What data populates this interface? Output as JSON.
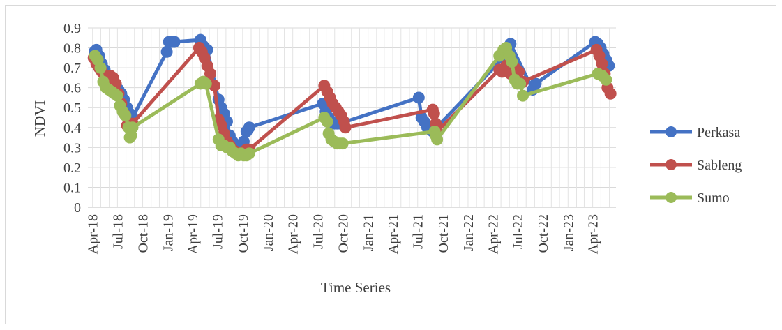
{
  "chart_data": {
    "type": "line",
    "title": "",
    "xlabel": "Time Series",
    "ylabel": "NDVI",
    "ylim": [
      0,
      0.9
    ],
    "y_ticks": [
      "0",
      "0.1",
      "0.2",
      "0.3",
      "0.4",
      "0.5",
      "0.6",
      "0.7",
      "0.8",
      "0.9"
    ],
    "x_ticks": [
      "Apr-18",
      "Jul-18",
      "Oct-18",
      "Jan-19",
      "Apr-19",
      "Jul-19",
      "Oct-19",
      "Jan-20",
      "Apr-20",
      "Jul-20",
      "Oct-20",
      "Jan-21",
      "Apr-21",
      "Jul-21",
      "Oct-21",
      "Jan-22",
      "Apr-22",
      "Jul-22",
      "Oct-22",
      "Jan-23",
      "Apr-23"
    ],
    "grid": true,
    "legend_position": "right",
    "series": [
      {
        "name": "Perkasa",
        "color": "#4472C4",
        "points": [
          [
            "2018-04-08",
            0.78
          ],
          [
            "2018-04-15",
            0.79
          ],
          [
            "2018-04-25",
            0.76
          ],
          [
            "2018-05-05",
            0.72
          ],
          [
            "2018-05-15",
            0.69
          ],
          [
            "2018-05-25",
            0.66
          ],
          [
            "2018-06-05",
            0.64
          ],
          [
            "2018-06-15",
            0.62
          ],
          [
            "2018-06-25",
            0.6
          ],
          [
            "2018-07-05",
            0.59
          ],
          [
            "2018-07-15",
            0.57
          ],
          [
            "2018-07-25",
            0.54
          ],
          [
            "2018-08-05",
            0.5
          ],
          [
            "2018-08-15",
            0.47
          ],
          [
            "2018-08-25",
            0.45
          ],
          [
            "2018-12-28",
            0.78
          ],
          [
            "2019-01-05",
            0.83
          ],
          [
            "2019-01-15",
            0.83
          ],
          [
            "2019-01-25",
            0.83
          ],
          [
            "2019-04-30",
            0.84
          ],
          [
            "2019-05-10",
            0.81
          ],
          [
            "2019-05-25",
            0.79
          ],
          [
            "2019-07-05",
            0.54
          ],
          [
            "2019-07-15",
            0.5
          ],
          [
            "2019-07-25",
            0.47
          ],
          [
            "2019-08-05",
            0.43
          ],
          [
            "2019-08-15",
            0.36
          ],
          [
            "2019-08-25",
            0.33
          ],
          [
            "2019-09-05",
            0.31
          ],
          [
            "2019-09-15",
            0.3
          ],
          [
            "2019-09-25",
            0.3
          ],
          [
            "2019-10-05",
            0.33
          ],
          [
            "2019-10-15",
            0.38
          ],
          [
            "2019-10-25",
            0.4
          ],
          [
            "2020-07-20",
            0.52
          ],
          [
            "2020-07-30",
            0.48
          ],
          [
            "2020-08-10",
            0.45
          ],
          [
            "2020-08-20",
            0.43
          ],
          [
            "2020-08-30",
            0.42
          ],
          [
            "2020-09-10",
            0.42
          ],
          [
            "2020-09-20",
            0.42
          ],
          [
            "2021-07-05",
            0.55
          ],
          [
            "2021-07-15",
            0.45
          ],
          [
            "2021-07-25",
            0.43
          ],
          [
            "2021-08-05",
            0.4
          ],
          [
            "2021-08-15",
            0.39
          ],
          [
            "2021-08-25",
            0.38
          ],
          [
            "2022-05-10",
            0.75
          ],
          [
            "2022-05-25",
            0.79
          ],
          [
            "2022-06-05",
            0.82
          ],
          [
            "2022-08-25",
            0.59
          ],
          [
            "2022-09-05",
            0.62
          ],
          [
            "2023-04-10",
            0.83
          ],
          [
            "2023-04-20",
            0.82
          ],
          [
            "2023-04-30",
            0.8
          ],
          [
            "2023-05-10",
            0.77
          ],
          [
            "2023-05-20",
            0.74
          ],
          [
            "2023-05-30",
            0.71
          ]
        ]
      },
      {
        "name": "Sableng",
        "color": "#C0504D",
        "points": [
          [
            "2018-04-05",
            0.75
          ],
          [
            "2018-04-15",
            0.72
          ],
          [
            "2018-04-25",
            0.7
          ],
          [
            "2018-05-05",
            0.68
          ],
          [
            "2018-05-15",
            0.66
          ],
          [
            "2018-05-25",
            0.63
          ],
          [
            "2018-06-05",
            0.66
          ],
          [
            "2018-06-15",
            0.65
          ],
          [
            "2018-06-25",
            0.62
          ],
          [
            "2018-07-05",
            0.57
          ],
          [
            "2018-07-15",
            0.52
          ],
          [
            "2018-07-25",
            0.47
          ],
          [
            "2018-08-05",
            0.41
          ],
          [
            "2018-08-15",
            0.42
          ],
          [
            "2018-08-25",
            0.42
          ],
          [
            "2019-04-25",
            0.8
          ],
          [
            "2019-05-05",
            0.78
          ],
          [
            "2019-05-15",
            0.75
          ],
          [
            "2019-05-25",
            0.71
          ],
          [
            "2019-06-05",
            0.67
          ],
          [
            "2019-06-20",
            0.61
          ],
          [
            "2019-07-05",
            0.44
          ],
          [
            "2019-07-15",
            0.41
          ],
          [
            "2019-07-25",
            0.37
          ],
          [
            "2019-08-05",
            0.33
          ],
          [
            "2019-08-15",
            0.31
          ],
          [
            "2019-08-25",
            0.29
          ],
          [
            "2019-09-05",
            0.28
          ],
          [
            "2019-09-15",
            0.27
          ],
          [
            "2019-09-25",
            0.27
          ],
          [
            "2019-10-05",
            0.28
          ],
          [
            "2019-10-15",
            0.29
          ],
          [
            "2019-10-25",
            0.29
          ],
          [
            "2020-07-25",
            0.61
          ],
          [
            "2020-08-05",
            0.58
          ],
          [
            "2020-08-15",
            0.55
          ],
          [
            "2020-08-25",
            0.52
          ],
          [
            "2020-09-05",
            0.5
          ],
          [
            "2020-09-15",
            0.48
          ],
          [
            "2020-09-25",
            0.46
          ],
          [
            "2020-10-05",
            0.43
          ],
          [
            "2020-10-10",
            0.4
          ],
          [
            "2021-08-25",
            0.49
          ],
          [
            "2021-08-30",
            0.47
          ],
          [
            "2021-09-05",
            0.42
          ],
          [
            "2021-09-10",
            0.38
          ],
          [
            "2022-04-25",
            0.69
          ],
          [
            "2022-05-05",
            0.68
          ],
          [
            "2022-05-20",
            0.71
          ],
          [
            "2022-06-05",
            0.67
          ],
          [
            "2022-06-20",
            0.7
          ],
          [
            "2022-07-05",
            0.68
          ],
          [
            "2022-07-20",
            0.63
          ],
          [
            "2023-04-15",
            0.79
          ],
          [
            "2023-04-25",
            0.76
          ],
          [
            "2023-05-05",
            0.72
          ],
          [
            "2023-05-15",
            0.67
          ],
          [
            "2023-05-25",
            0.6
          ],
          [
            "2023-06-05",
            0.57
          ]
        ]
      },
      {
        "name": "Sumo",
        "color": "#9BBB59",
        "points": [
          [
            "2018-04-10",
            0.76
          ],
          [
            "2018-04-20",
            0.74
          ],
          [
            "2018-04-30",
            0.7
          ],
          [
            "2018-05-10",
            0.63
          ],
          [
            "2018-05-20",
            0.6
          ],
          [
            "2018-05-30",
            0.59
          ],
          [
            "2018-06-10",
            0.58
          ],
          [
            "2018-06-20",
            0.57
          ],
          [
            "2018-06-30",
            0.56
          ],
          [
            "2018-07-10",
            0.51
          ],
          [
            "2018-07-20",
            0.48
          ],
          [
            "2018-07-30",
            0.46
          ],
          [
            "2018-08-10",
            0.4
          ],
          [
            "2018-08-15",
            0.35
          ],
          [
            "2018-08-20",
            0.36
          ],
          [
            "2018-08-25",
            0.4
          ],
          [
            "2019-04-30",
            0.62
          ],
          [
            "2019-05-10",
            0.63
          ],
          [
            "2019-05-20",
            0.62
          ],
          [
            "2019-07-05",
            0.34
          ],
          [
            "2019-07-15",
            0.31
          ],
          [
            "2019-07-25",
            0.31
          ],
          [
            "2019-08-05",
            0.3
          ],
          [
            "2019-08-15",
            0.3
          ],
          [
            "2019-08-25",
            0.28
          ],
          [
            "2019-09-05",
            0.27
          ],
          [
            "2019-09-15",
            0.26
          ],
          [
            "2019-09-25",
            0.27
          ],
          [
            "2019-10-05",
            0.26
          ],
          [
            "2019-10-15",
            0.26
          ],
          [
            "2019-10-25",
            0.27
          ],
          [
            "2020-07-25",
            0.45
          ],
          [
            "2020-08-05",
            0.43
          ],
          [
            "2020-08-10",
            0.37
          ],
          [
            "2020-08-20",
            0.34
          ],
          [
            "2020-08-30",
            0.33
          ],
          [
            "2020-09-10",
            0.32
          ],
          [
            "2020-09-20",
            0.32
          ],
          [
            "2020-09-30",
            0.32
          ],
          [
            "2021-09-01",
            0.38
          ],
          [
            "2021-09-05",
            0.36
          ],
          [
            "2021-09-10",
            0.34
          ],
          [
            "2022-04-25",
            0.76
          ],
          [
            "2022-05-10",
            0.79
          ],
          [
            "2022-05-20",
            0.8
          ],
          [
            "2022-06-01",
            0.76
          ],
          [
            "2022-06-10",
            0.73
          ],
          [
            "2022-06-20",
            0.64
          ],
          [
            "2022-06-30",
            0.62
          ],
          [
            "2022-07-10",
            0.62
          ],
          [
            "2022-07-20",
            0.56
          ],
          [
            "2023-04-20",
            0.67
          ],
          [
            "2023-05-05",
            0.66
          ],
          [
            "2023-05-20",
            0.64
          ]
        ]
      }
    ]
  }
}
